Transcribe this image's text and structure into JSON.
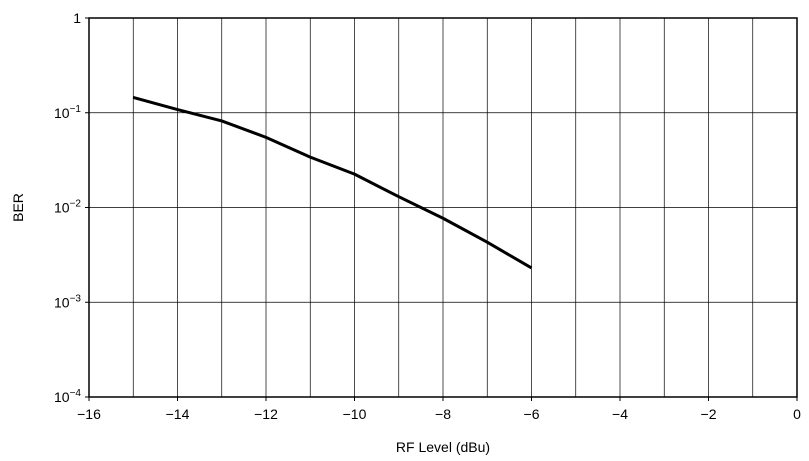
{
  "chart_data": {
    "type": "line",
    "title": "",
    "xlabel": "RF Level (dBu)",
    "ylabel": "BER",
    "xlim": [
      -16,
      0
    ],
    "ylim": [
      0.0001,
      1
    ],
    "yscale": "log",
    "grid": true,
    "x_ticks": [
      -16,
      -14,
      -12,
      -10,
      -8,
      -6,
      -4,
      -2,
      0
    ],
    "x_tick_labels": [
      "−16",
      "−14",
      "−12",
      "−10",
      "−8",
      "−6",
      "−4",
      "−2",
      "0"
    ],
    "y_ticks": [
      {
        "value": 1,
        "base": "1",
        "exp": ""
      },
      {
        "value": 0.1,
        "base": "10",
        "exp": "−1"
      },
      {
        "value": 0.01,
        "base": "10",
        "exp": "−2"
      },
      {
        "value": 0.001,
        "base": "10",
        "exp": "−3"
      },
      {
        "value": 0.0001,
        "base": "10",
        "exp": "−4"
      }
    ],
    "series": [
      {
        "x": [
          -15,
          -14,
          -13,
          -12,
          -11,
          -10,
          -9,
          -8,
          -7,
          -6
        ],
        "y": [
          0.145,
          0.108,
          0.082,
          0.055,
          0.034,
          0.0225,
          0.013,
          0.0077,
          0.0043,
          0.0023
        ]
      }
    ]
  }
}
